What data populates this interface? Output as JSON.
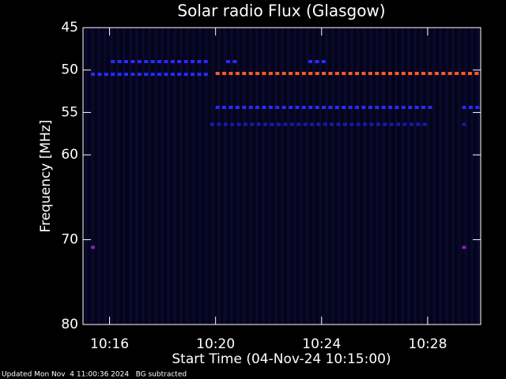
{
  "chart_data": {
    "type": "spectrogram",
    "title": "Solar radio Flux (Glasgow)",
    "ylabel": "Frequency [MHz]",
    "xlabel": "Start Time (04-Nov-24 10:15:00)",
    "footer": "Updated Mon Nov  4 11:00:36 2024   BG subtracted",
    "xlim": [
      0,
      15
    ],
    "xticks": [
      {
        "value": 1,
        "label": "10:16"
      },
      {
        "value": 5,
        "label": "10:20"
      },
      {
        "value": 9,
        "label": "10:24"
      },
      {
        "value": 13,
        "label": "10:28"
      }
    ],
    "ylim": [
      80,
      45
    ],
    "yticks": [
      45,
      50,
      55,
      60,
      70,
      80
    ],
    "features": [
      {
        "frequency": 50.5,
        "x": [
          0.3,
          4.8
        ],
        "color": "#2a2aff"
      },
      {
        "frequency": 50.4,
        "x": [
          5.0,
          15.0
        ],
        "color": "#ff5a1e"
      },
      {
        "frequency": 49.0,
        "x": [
          1.05,
          4.8
        ],
        "color": "#2a2aff"
      },
      {
        "frequency": 49.0,
        "x": [
          5.4,
          5.8
        ],
        "color": "#2a2aff"
      },
      {
        "frequency": 49.0,
        "x": [
          8.5,
          9.25
        ],
        "color": "#2a2aff"
      },
      {
        "frequency": 54.4,
        "x": [
          5.0,
          13.2
        ],
        "color": "#2a2aff"
      },
      {
        "frequency": 54.4,
        "x": [
          14.3,
          15.0
        ],
        "color": "#2a2aff"
      },
      {
        "frequency": 56.4,
        "x": [
          4.8,
          13.0
        ],
        "color": "#1818b0"
      },
      {
        "frequency": 56.4,
        "x": [
          14.3,
          14.5
        ],
        "color": "#1818b0"
      },
      {
        "frequency": 70.9,
        "x": [
          0.3,
          0.5
        ],
        "color": "#8020c0"
      },
      {
        "frequency": 70.9,
        "x": [
          14.3,
          14.5
        ],
        "color": "#8020c0"
      }
    ]
  }
}
